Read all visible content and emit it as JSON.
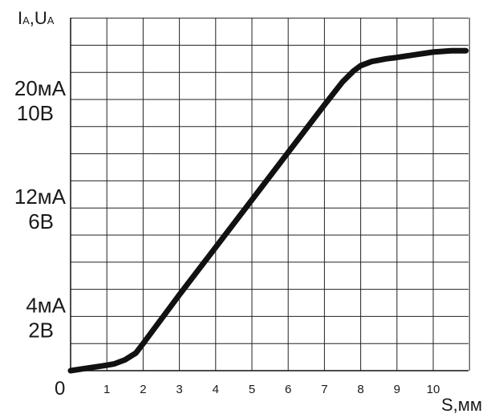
{
  "chart_data": {
    "type": "line",
    "title": "",
    "ylabel": "IA,UA",
    "ylabel_main": "I",
    "ylabel_sub1": "A",
    "ylabel_sep": ",U",
    "ylabel_sub2": "A",
    "xlabel": "S,мм",
    "xlim": [
      0,
      11
    ],
    "ylim": [
      0,
      26
    ],
    "grid": true,
    "origin_label": "0",
    "x_ticks": [
      "1",
      "2",
      "3",
      "4",
      "5",
      "6",
      "7",
      "8",
      "9",
      "10"
    ],
    "y_tick_labels": [
      {
        "value": 4,
        "line1": "4мА",
        "line2": "2В"
      },
      {
        "value": 12,
        "line1": "12мА",
        "line2": "6В"
      },
      {
        "value": 20,
        "line1": "20мА",
        "line2": "10В"
      }
    ],
    "series": [
      {
        "color": "#111111",
        "x": [
          0,
          0.5,
          1,
          1.2,
          1.5,
          1.8,
          2,
          3,
          4,
          5,
          6,
          7,
          7.5,
          7.8,
          8,
          8.3,
          8.7,
          9,
          9.5,
          10,
          10.5,
          10.9
        ],
        "y": [
          0,
          0.2,
          0.4,
          0.5,
          0.8,
          1.3,
          2,
          5.6,
          9.1,
          12.6,
          16.1,
          19.6,
          21.3,
          22.1,
          22.5,
          22.8,
          23,
          23.1,
          23.3,
          23.5,
          23.6,
          23.6
        ]
      }
    ]
  }
}
